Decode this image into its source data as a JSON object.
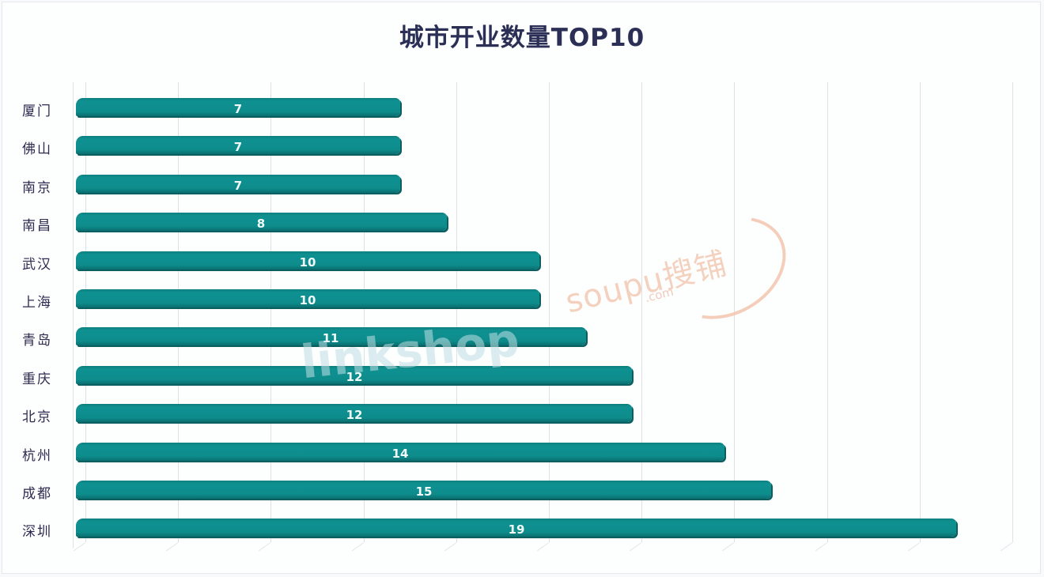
{
  "chart_data": {
    "type": "bar",
    "orientation": "horizontal",
    "title": "城市开业数量TOP10",
    "xlabel": "",
    "ylabel": "",
    "categories": [
      "厦门",
      "佛山",
      "南京",
      "南昌",
      "武汉",
      "上海",
      "青岛",
      "重庆",
      "北京",
      "杭州",
      "成都",
      "深圳"
    ],
    "values": [
      7,
      7,
      7,
      8,
      10,
      10,
      11,
      12,
      12,
      14,
      15,
      19
    ],
    "xlim": [
      0,
      20
    ],
    "grid": true,
    "grid_step": 2,
    "data_labels": true,
    "legend": null,
    "bar_color": "#0e8b8c"
  },
  "watermarks": [
    "soupu搜铺 .com",
    "linkshop 联商网"
  ]
}
